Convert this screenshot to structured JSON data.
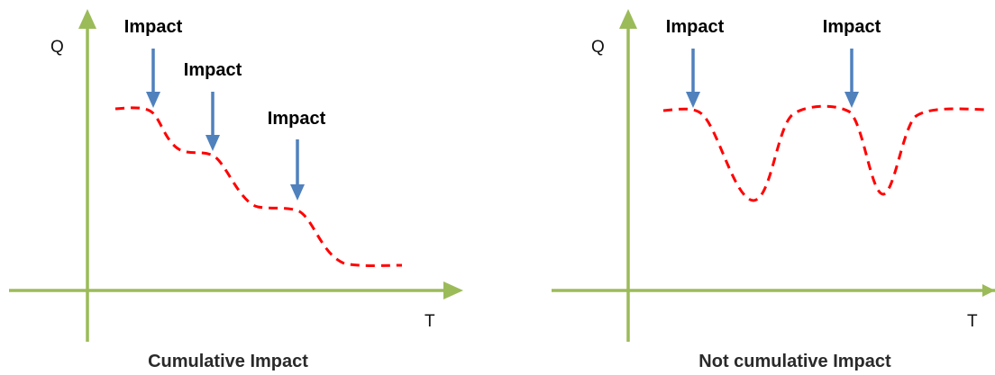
{
  "colors": {
    "axis": "#9bbb59",
    "curve": "#ff0000",
    "arrow": "#4f81bd"
  },
  "panels": [
    {
      "y_axis_label": "Q",
      "x_axis_label": "T",
      "caption": "Cumulative Impact",
      "impacts": [
        {
          "label": "Impact"
        },
        {
          "label": "Impact"
        },
        {
          "label": "Impact"
        }
      ]
    },
    {
      "y_axis_label": "Q",
      "x_axis_label": "T",
      "caption": "Not cumulative Impact",
      "impacts": [
        {
          "label": "Impact"
        },
        {
          "label": "Impact"
        }
      ]
    }
  ]
}
